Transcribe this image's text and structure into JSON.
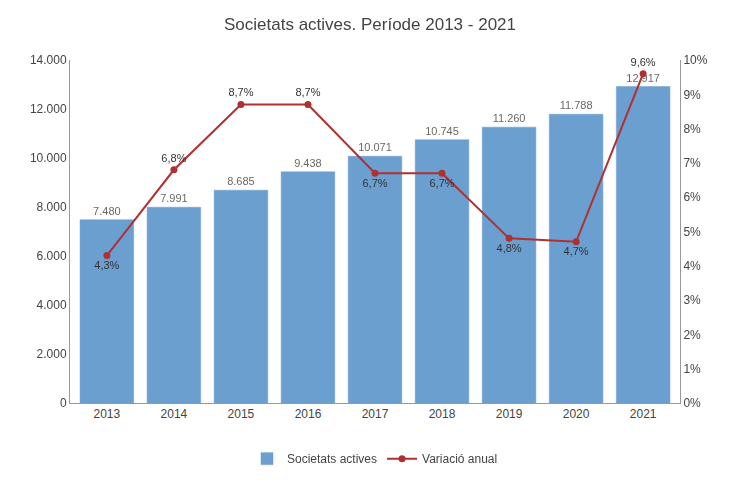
{
  "chart_data": {
    "type": "bar",
    "title": "Societats actives. Període 2013 - 2021",
    "x": [
      2013,
      2014,
      2015,
      2016,
      2017,
      2018,
      2019,
      2020,
      2021
    ],
    "xlim": [
      2012.45,
      2021.55
    ],
    "xticks": [
      2013,
      2014,
      2015,
      2016,
      2017,
      2018,
      2019,
      2020,
      2021
    ],
    "ylim": [
      0,
      14000
    ],
    "yticks": [
      0,
      {
        "value": 2000,
        "label": "2.000"
      },
      {
        "value": 4000,
        "label": "4.000"
      },
      {
        "value": 6000,
        "label": "6.000"
      },
      {
        "value": 8000,
        "label": "8.000"
      },
      {
        "value": 10000,
        "label": "10.000"
      },
      {
        "value": 12000,
        "label": "12.000"
      },
      {
        "value": 14000,
        "label": "14.000"
      }
    ],
    "y2lim": [
      0,
      10
    ],
    "y2ticks": [
      {
        "value": 0,
        "label": "0%"
      },
      {
        "value": 1,
        "label": "1%"
      },
      {
        "value": 2,
        "label": "2%"
      },
      {
        "value": 3,
        "label": "3%"
      },
      {
        "value": 4,
        "label": "4%"
      },
      {
        "value": 5,
        "label": "5%"
      },
      {
        "value": 6,
        "label": "6%"
      },
      {
        "value": 7,
        "label": "7%"
      },
      {
        "value": 8,
        "label": "8%"
      },
      {
        "value": 9,
        "label": "9%"
      },
      {
        "value": 10,
        "label": "10%"
      }
    ],
    "grid": false,
    "legend": "bottom",
    "data_labels": true,
    "series": [
      {
        "name": "Societats actives",
        "type": "bar",
        "color": "#3a7fc1",
        "values": [
          7480,
          7991,
          8685,
          9438,
          10071,
          10745,
          11260,
          11788,
          12917
        ],
        "value_labels": [
          "7.480",
          "7.991",
          "8.685",
          "9.438",
          "10.071",
          "10.745",
          "11.260",
          "11.788",
          "12.917"
        ]
      },
      {
        "name": "Variació anual",
        "type": "line",
        "axis": "y2",
        "color": "#b03030",
        "marker": "circle",
        "values": [
          4.3,
          6.8,
          8.7,
          8.7,
          6.7,
          6.7,
          4.8,
          4.7,
          9.6
        ],
        "value_labels": [
          "4,3%",
          "6,8%",
          "8,7%",
          "8,7%",
          "6,7%",
          "6,7%",
          "4,8%",
          "4,7%",
          "9,6%"
        ]
      }
    ]
  }
}
